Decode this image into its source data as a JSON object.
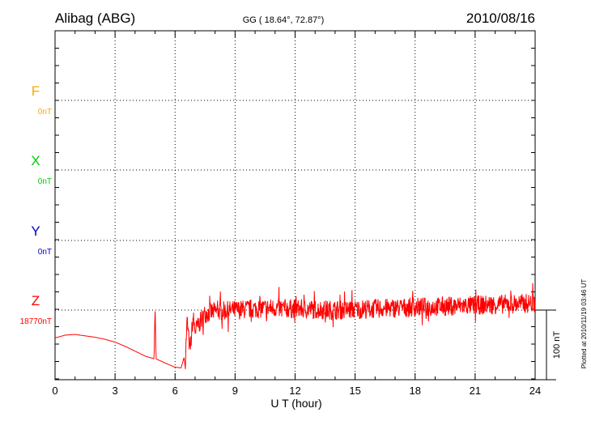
{
  "header": {
    "station": "Alibag (ABG)",
    "coords": "GG ( 18.64°,  72.87°)",
    "date": "2010/08/16"
  },
  "side_note": "Plotted at 2010/11/19 03:46 UT",
  "chart_data": {
    "type": "line",
    "title": "Alibag (ABG)",
    "xlabel": "U T (hour)",
    "xlim": [
      0,
      24
    ],
    "xticks": [
      "0",
      "3",
      "6",
      "9",
      "12",
      "15",
      "18",
      "21",
      "24"
    ],
    "grid": true,
    "scale_bar": "100 nT",
    "components": [
      {
        "name": "F",
        "baseline": "0nT",
        "color": "#ffa500"
      },
      {
        "name": "X",
        "baseline": "0nT",
        "color": "#00cc00"
      },
      {
        "name": "Y",
        "baseline": "0nT",
        "color": "#0000cc"
      },
      {
        "name": "Z",
        "baseline": "18770nT",
        "color": "#ff0000"
      }
    ],
    "series": [
      {
        "name": "Z",
        "unit": "nT",
        "points": [
          [
            0.0,
            18730
          ],
          [
            0.5,
            18734
          ],
          [
            1.0,
            18735
          ],
          [
            1.5,
            18733
          ],
          [
            2.0,
            18731
          ],
          [
            2.5,
            18728
          ],
          [
            3.0,
            18724
          ],
          [
            3.5,
            18718
          ],
          [
            4.0,
            18711
          ],
          [
            4.5,
            18704
          ],
          [
            4.95,
            18700
          ],
          [
            5.0,
            18777
          ],
          [
            5.05,
            18700
          ],
          [
            5.5,
            18694
          ],
          [
            6.0,
            18688
          ],
          [
            6.3,
            18687
          ],
          [
            6.45,
            18702
          ],
          [
            6.5,
            18690
          ],
          [
            6.6,
            18755
          ],
          [
            6.75,
            18710
          ],
          [
            6.9,
            18760
          ],
          [
            7.0,
            18740
          ],
          [
            7.5,
            18765
          ],
          [
            8.0,
            18768
          ],
          [
            9.0,
            18770
          ],
          [
            10.0,
            18772
          ],
          [
            11.0,
            18773
          ],
          [
            12.0,
            18772
          ],
          [
            13.0,
            18771
          ],
          [
            14.0,
            18770
          ],
          [
            15.0,
            18771
          ],
          [
            16.0,
            18772
          ],
          [
            17.0,
            18773
          ],
          [
            18.0,
            18774
          ],
          [
            19.0,
            18775
          ],
          [
            20.0,
            18776
          ],
          [
            21.0,
            18777
          ],
          [
            22.0,
            18778
          ],
          [
            23.0,
            18779
          ],
          [
            24.0,
            18780
          ]
        ],
        "noise_nT": 14
      }
    ]
  }
}
